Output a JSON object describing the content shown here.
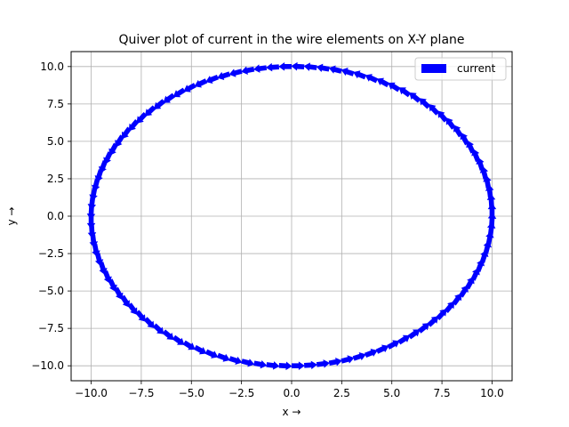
{
  "chart_data": {
    "type": "quiver",
    "title": "Quiver plot of current in the wire elements on X-Y plane",
    "xlabel": "x →",
    "ylabel": "y →",
    "xlim": [
      -11.0,
      11.0
    ],
    "ylim": [
      -11.0,
      11.0
    ],
    "xticks": [
      -10.0,
      -7.5,
      -5.0,
      -2.5,
      0.0,
      2.5,
      5.0,
      7.5,
      10.0
    ],
    "yticks": [
      -10.0,
      -7.5,
      -5.0,
      -2.5,
      0.0,
      2.5,
      5.0,
      7.5,
      10.0
    ],
    "xtick_labels": [
      "−10.0",
      "−7.5",
      "−5.0",
      "−2.5",
      "0.0",
      "2.5",
      "5.0",
      "7.5",
      "10.0"
    ],
    "ytick_labels": [
      "−10.0",
      "−7.5",
      "−5.0",
      "−2.5",
      "0.0",
      "2.5",
      "5.0",
      "7.5",
      "10.0"
    ],
    "grid": true,
    "legend": {
      "placement": "top-right",
      "entries": [
        "current"
      ]
    },
    "series": [
      {
        "name": "current",
        "color": "#0000ff",
        "shape": "circle",
        "radius": 10,
        "num_elements": 100,
        "direction": "counter-clockwise"
      }
    ]
  }
}
